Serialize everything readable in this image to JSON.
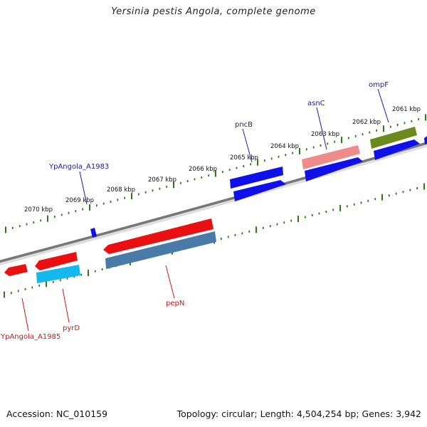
{
  "header": {
    "title": "Yersinia pestis Angola, complete genome"
  },
  "footer": {
    "accession": "Accession: NC_010159",
    "summary": "Topology: circular; Length: 4,504,254 bp; Genes: 3,942"
  },
  "colors": {
    "backbone": "#777777",
    "tick": "#2a7a1a",
    "forward_label": "#1a1aa6",
    "reverse_label": "#c41a1a",
    "blue": "#1010e8",
    "red": "#e81010",
    "pink": "#ee8a8a",
    "olive": "#6b8a1e",
    "cyan": "#12b8ee",
    "steel": "#4a7aa8"
  },
  "ruler_labels": [
    {
      "id": "kbp2070",
      "text": "2070 kbp"
    },
    {
      "id": "kbp2069",
      "text": "2069 kbp"
    },
    {
      "id": "kbp2068",
      "text": "2068 kbp"
    },
    {
      "id": "kbp2067",
      "text": "2067 kbp"
    },
    {
      "id": "kbp2066",
      "text": "2066 kbp"
    },
    {
      "id": "kbp2065",
      "text": "2065 kbp"
    },
    {
      "id": "kbp2064",
      "text": "2064 kbp"
    },
    {
      "id": "kbp2063",
      "text": "2063 kbp"
    },
    {
      "id": "kbp2062",
      "text": "2062 kbp"
    },
    {
      "id": "kbp2061",
      "text": "2061 kbp"
    }
  ],
  "gene_labels": [
    {
      "id": "ypangola_a1983",
      "text": "YpAngola_A1983",
      "strand": "forward"
    },
    {
      "id": "pncb",
      "text": "pncB",
      "strand": "forward"
    },
    {
      "id": "asnc",
      "text": "asnC",
      "strand": "forward"
    },
    {
      "id": "ompf",
      "text": "ompF",
      "strand": "forward"
    },
    {
      "id": "pepn",
      "text": "pepN",
      "strand": "reverse"
    },
    {
      "id": "pyrd",
      "text": "pyrD",
      "strand": "reverse"
    },
    {
      "id": "ypangola_a1985",
      "text": "YpAngola_A1985",
      "strand": "reverse"
    }
  ]
}
